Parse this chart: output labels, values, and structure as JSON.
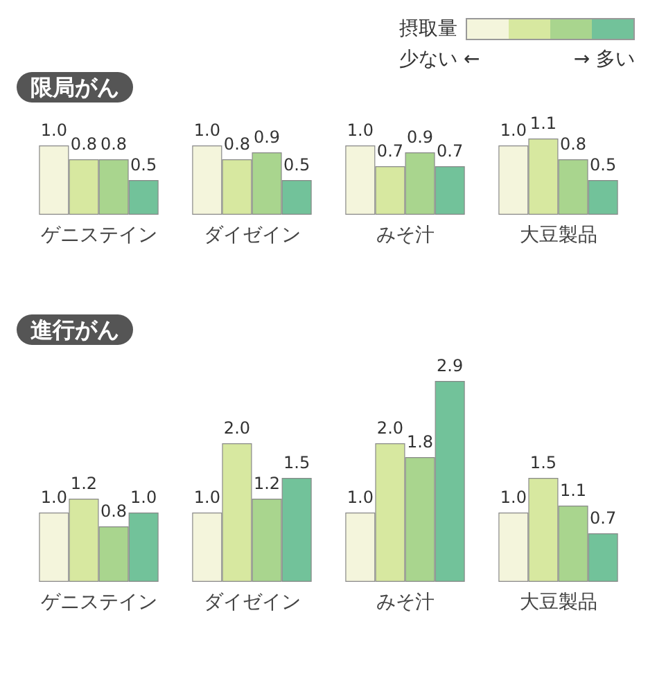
{
  "chart_data": [
    {
      "type": "bar",
      "title": "限局がん",
      "legend_title": "摂取量",
      "annotations": [
        "少ない ←",
        "→ 多い"
      ],
      "categories": [
        "ゲニステイン",
        "ダイゼイン",
        "みそ汁",
        "大豆製品"
      ],
      "series": [
        {
          "color": "#f4f5dc",
          "values": [
            1.0,
            1.0,
            1.0,
            1.0
          ],
          "value_labels": [
            "1.0",
            "1.0",
            "1.0",
            "1.0"
          ]
        },
        {
          "color": "#d7e8a0",
          "values": [
            0.8,
            0.8,
            0.7,
            1.1
          ],
          "value_labels": [
            "0.8",
            "0.8",
            "0.7",
            "1.1"
          ]
        },
        {
          "color": "#a9d58e",
          "values": [
            0.8,
            0.9,
            0.9,
            0.8
          ],
          "value_labels": [
            "0.8",
            "0.9",
            "0.9",
            "0.8"
          ]
        },
        {
          "color": "#72c29a",
          "values": [
            0.5,
            0.5,
            0.7,
            0.5
          ],
          "value_labels": [
            "0.5",
            "0.5",
            "0.7",
            "0.5"
          ]
        }
      ]
    },
    {
      "type": "bar",
      "title": "進行がん",
      "categories": [
        "ゲニステイン",
        "ダイゼイン",
        "みそ汁",
        "大豆製品"
      ],
      "series": [
        {
          "color": "#f4f5dc",
          "values": [
            1.0,
            1.0,
            1.0,
            1.0
          ],
          "value_labels": [
            "1.0",
            "1.0",
            "1.0",
            "1.0"
          ]
        },
        {
          "color": "#d7e8a0",
          "values": [
            1.2,
            2.0,
            2.0,
            1.5
          ],
          "value_labels": [
            "1.2",
            "2.0",
            "2.0",
            "1.5"
          ]
        },
        {
          "color": "#a9d58e",
          "values": [
            0.8,
            1.2,
            1.8,
            1.1
          ],
          "value_labels": [
            "0.8",
            "1.2",
            "1.8",
            "1.1"
          ]
        },
        {
          "color": "#72c29a",
          "values": [
            1.0,
            1.5,
            2.9,
            0.7
          ],
          "value_labels": [
            "1.0",
            "1.5",
            "2.9",
            "0.7"
          ]
        }
      ]
    }
  ]
}
